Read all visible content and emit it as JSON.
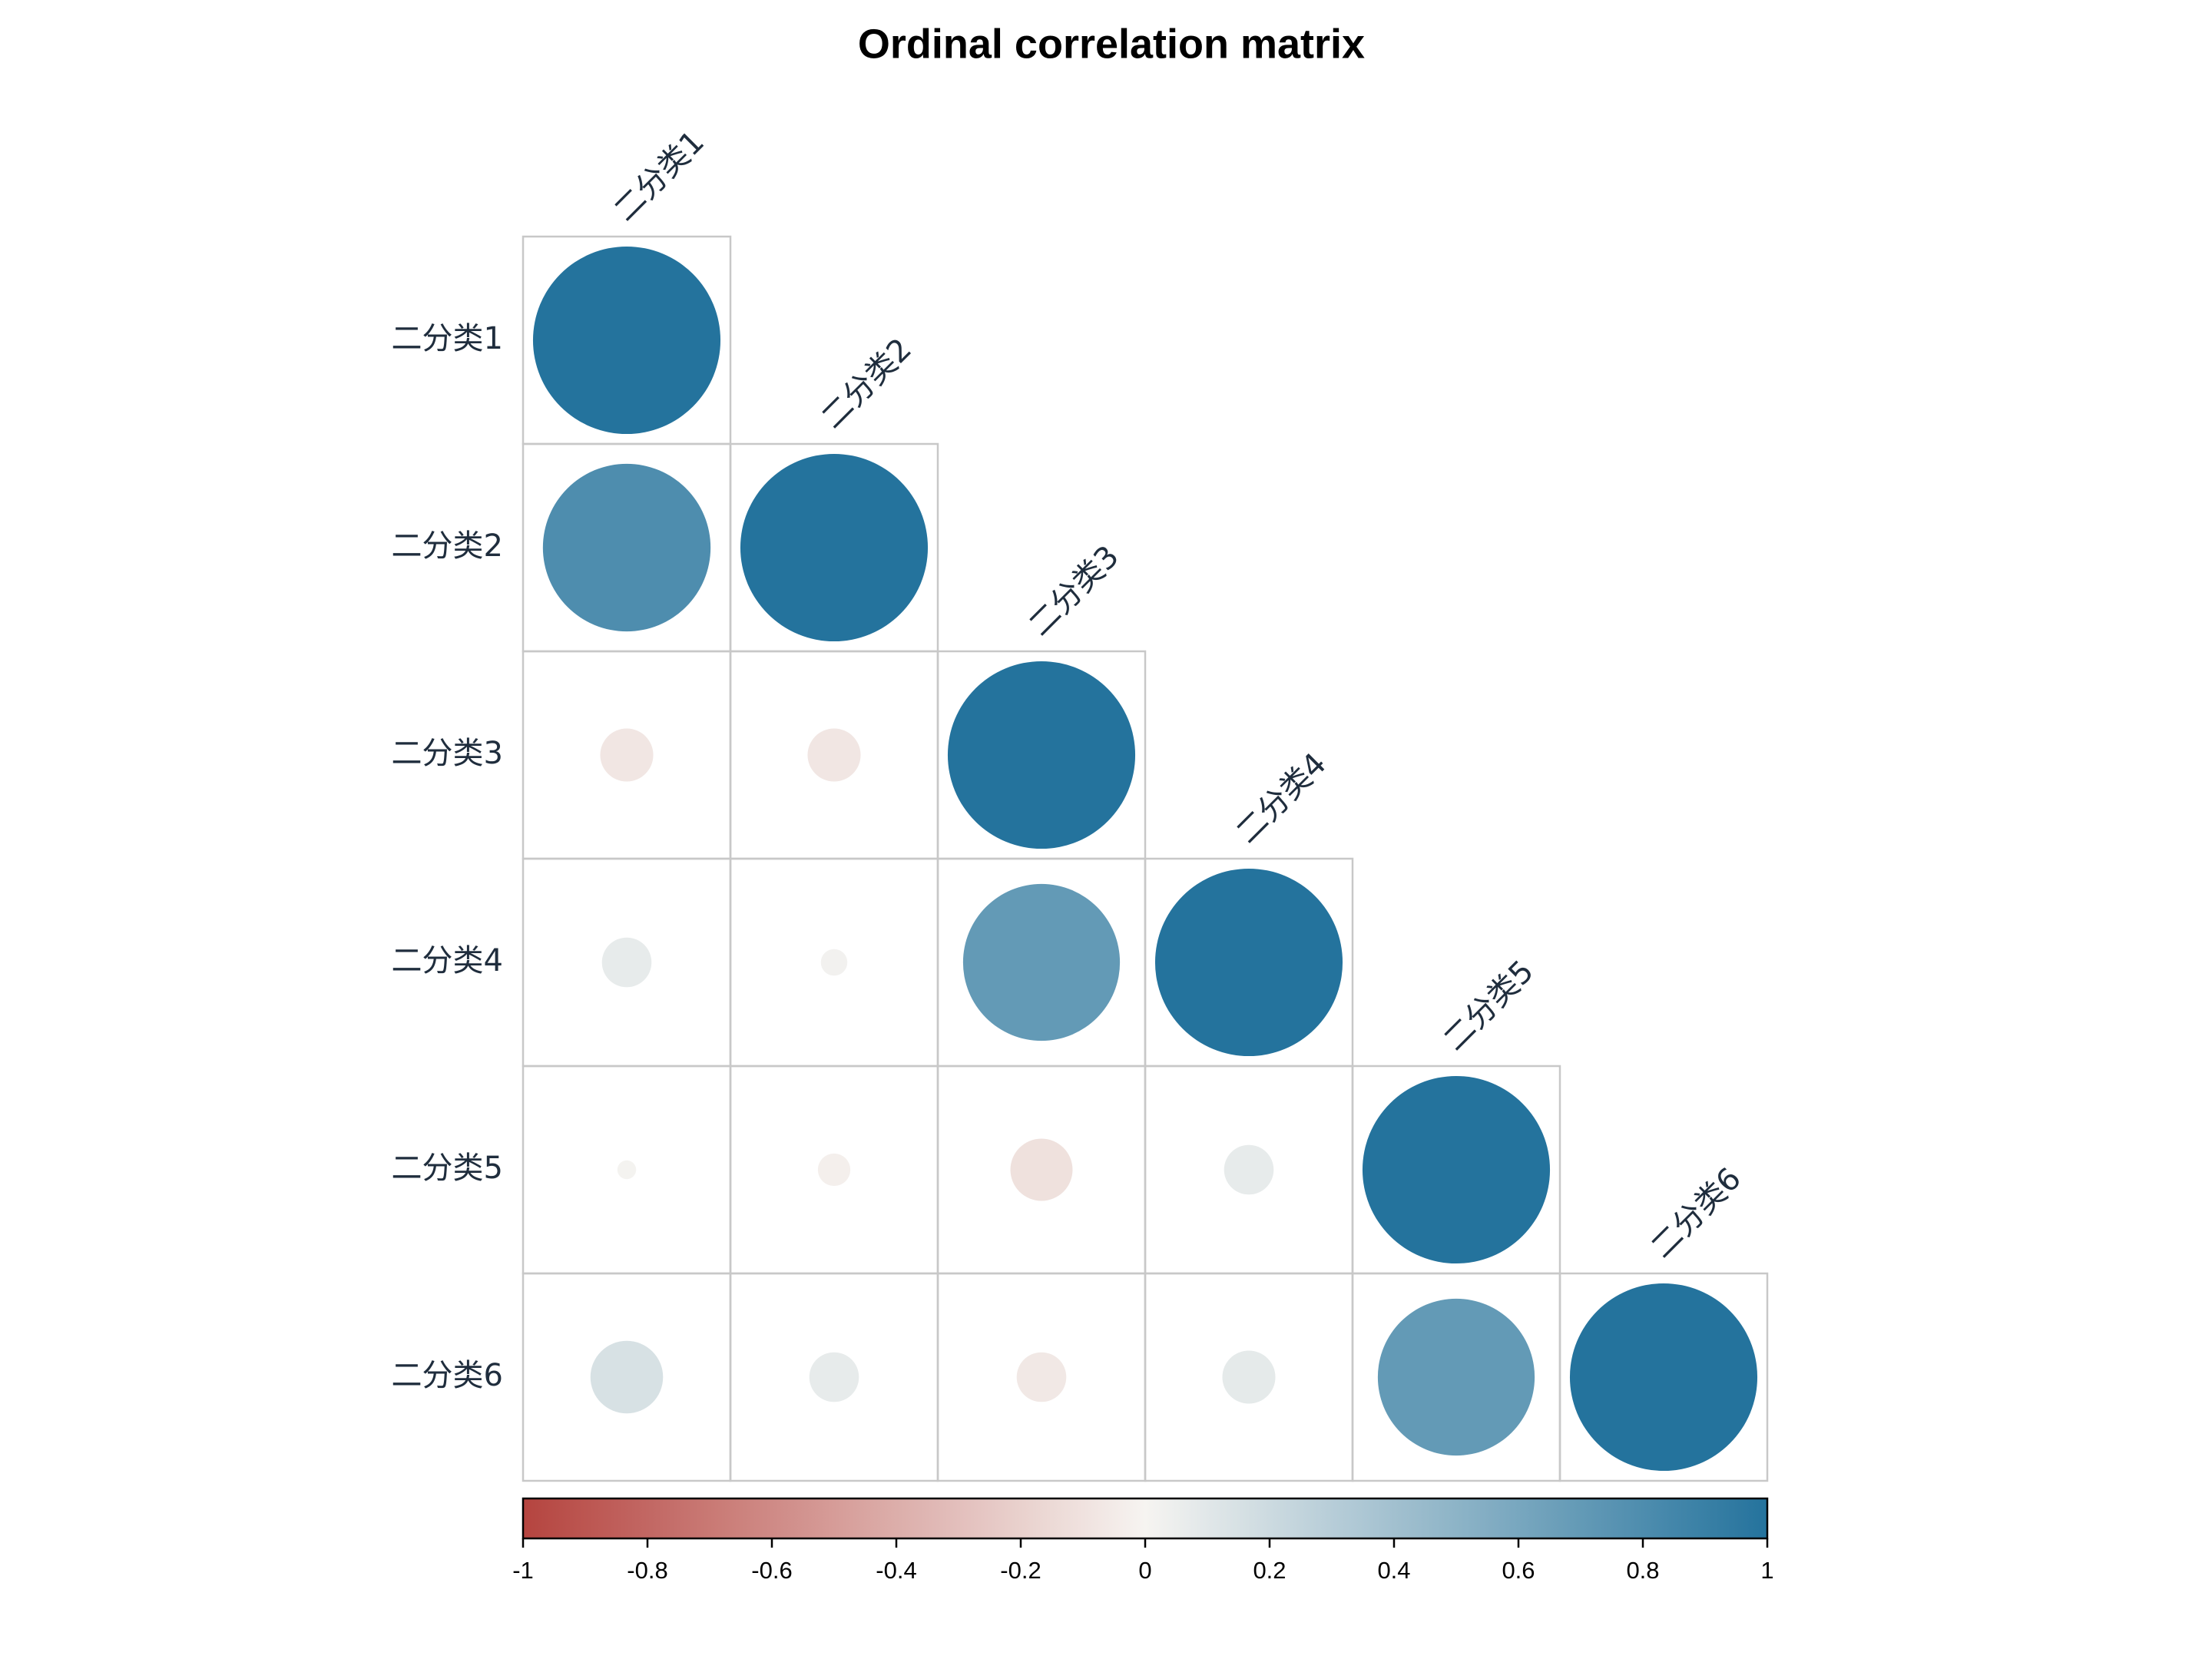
{
  "chart_data": {
    "type": "correlation-matrix",
    "title": "Ordinal correlation matrix",
    "categories": [
      "二分类1",
      "二分类2",
      "二分类3",
      "二分类4",
      "二分类5",
      "二分类6"
    ],
    "values": [
      [
        1
      ],
      [
        0.8,
        1
      ],
      [
        -0.08,
        -0.08,
        1
      ],
      [
        0.07,
        0.02,
        0.7,
        1
      ],
      [
        0.01,
        -0.03,
        -0.11,
        0.07,
        1
      ],
      [
        0.15,
        0.07,
        -0.07,
        0.08,
        0.7,
        1
      ]
    ],
    "colors": [
      "#b5443f",
      "#f6f4f1",
      "#24739d"
    ],
    "colorbar_lim": [
      -1,
      1
    ],
    "colorbar_ticks": [
      -1,
      -0.8,
      -0.6,
      -0.4,
      -0.2,
      0,
      0.2,
      0.4,
      0.6,
      0.8,
      1
    ]
  }
}
